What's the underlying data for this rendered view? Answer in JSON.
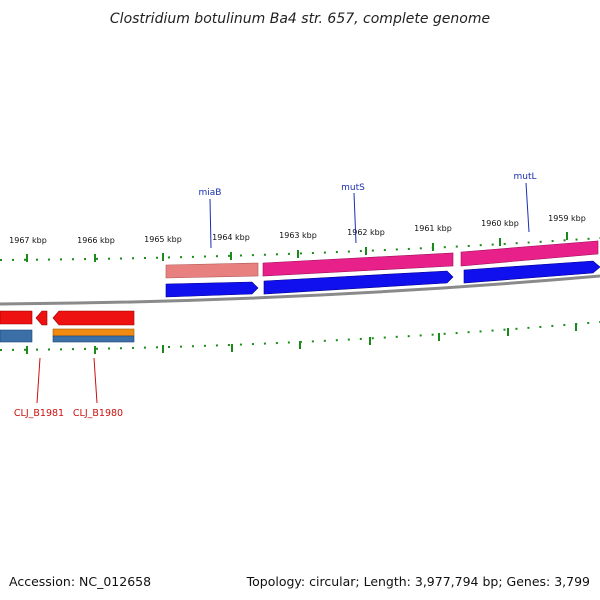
{
  "title": "Clostridium botulinum Ba4 str. 657, complete genome",
  "footer": {
    "accession": "Accession: NC_012658",
    "summary": "Topology: circular; Length: 3,977,794 bp; Genes: 3,799"
  },
  "coordinate_labels": [
    "1967 kbp",
    "1966 kbp",
    "1965 kbp",
    "1964 kbp",
    "1963 kbp",
    "1962 kbp",
    "1961 kbp",
    "1960 kbp",
    "1959 kbp"
  ],
  "genes_forward": [
    {
      "name": "miaB",
      "color": "#e98080"
    },
    {
      "name": "mutS",
      "color": "#e8208a"
    },
    {
      "name": "mutL",
      "color": "#e8208a"
    }
  ],
  "genes_reverse": [
    {
      "name": "CLJ_B1981",
      "color": "#ee1111"
    },
    {
      "name": "CLJ_B1980",
      "color": "#ee1111"
    }
  ],
  "colors": {
    "cds_forward": "#1010ee",
    "cds_reverse": "#3a6fa8",
    "orange_feature": "#f08a10",
    "backbone": "#8a8a8a",
    "ticks": "#1a8a1a",
    "label_above": "#1a2fb0",
    "label_below": "#cc1010"
  }
}
